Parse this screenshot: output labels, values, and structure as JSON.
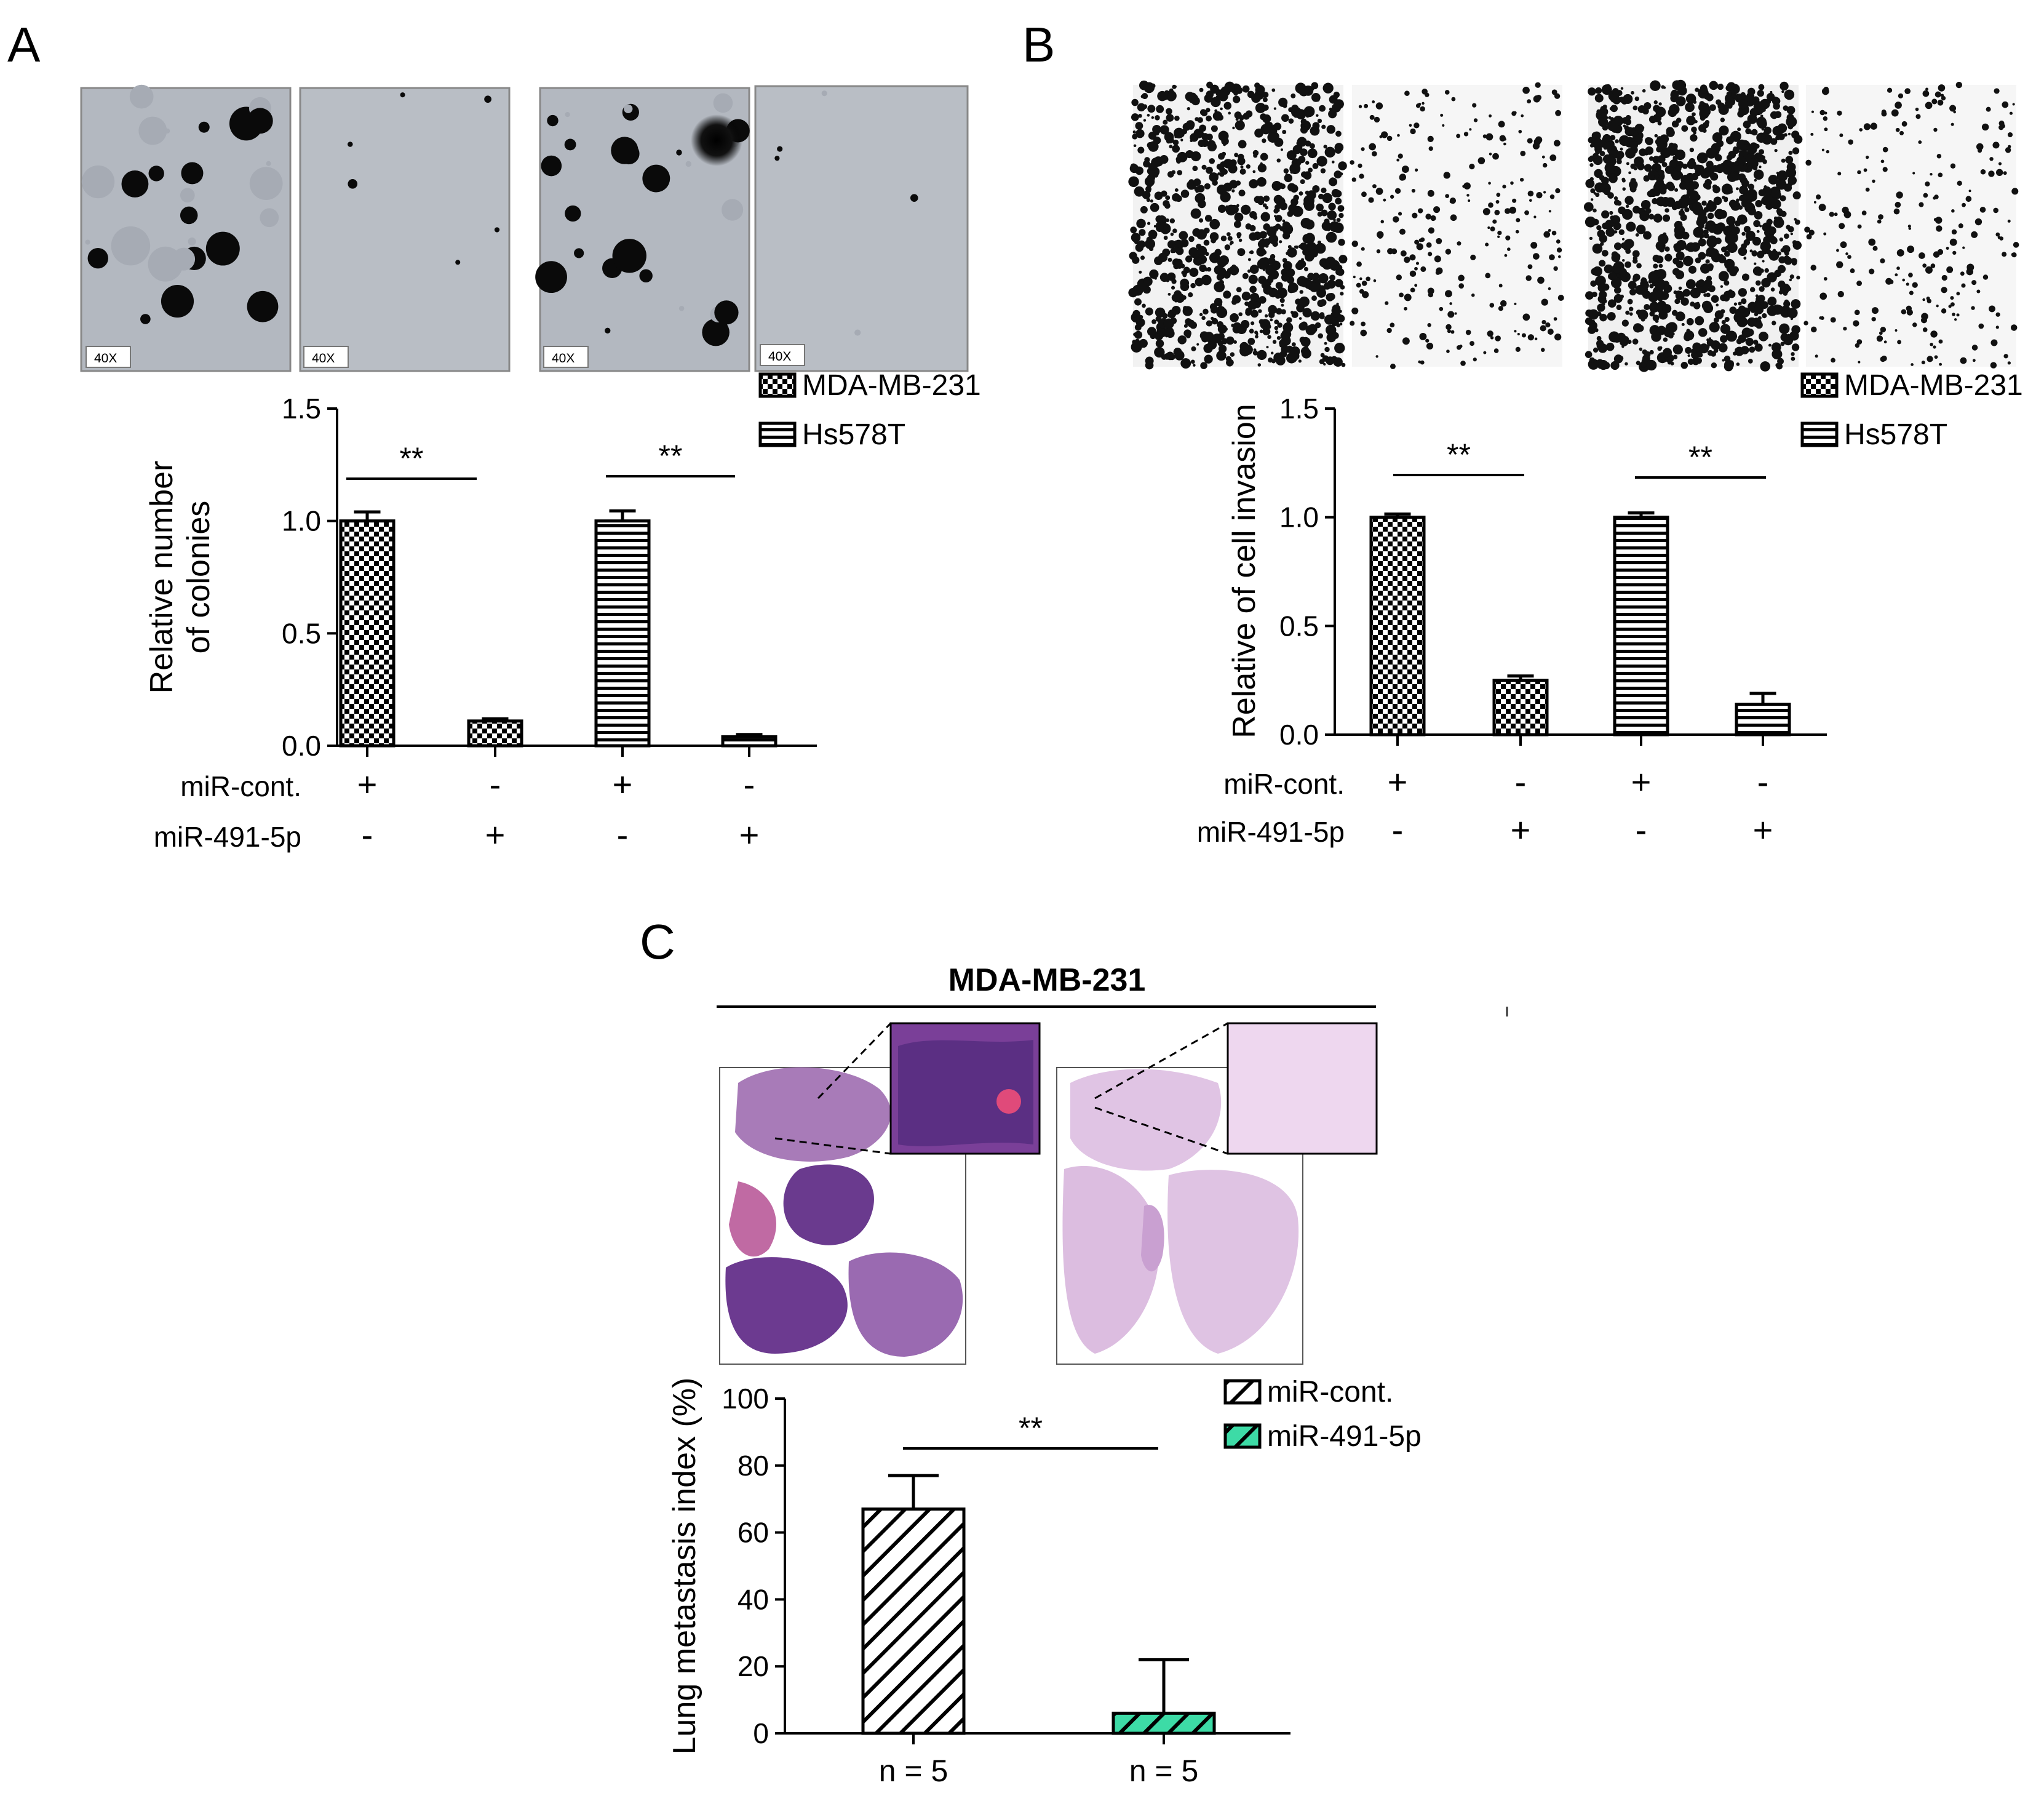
{
  "panels": {
    "a": {
      "letter": "A",
      "micrograph_scale_labels": [
        "40X",
        "40X",
        "40X",
        "40X"
      ]
    },
    "b": {
      "letter": "B"
    },
    "c": {
      "letter": "C",
      "header": "MDA-MB-231"
    }
  },
  "row_labels": {
    "cont": "miR-cont.",
    "mir": "miR-491-5p"
  },
  "chart_data": [
    {
      "id": "A",
      "type": "bar",
      "ylabel": [
        "Relative number",
        "of colonies"
      ],
      "ylim": [
        0,
        1.5
      ],
      "yticks": [
        "0.0",
        "0.5",
        "1.0",
        "1.5"
      ],
      "categories": [
        "MDA-MB-231 miR-cont.",
        "MDA-MB-231 miR-491-5p",
        "Hs578T miR-cont.",
        "Hs578T miR-491-5p"
      ],
      "values": [
        1.0,
        0.11,
        1.0,
        0.04
      ],
      "errors": [
        0.04,
        0.01,
        0.045,
        0.01
      ],
      "bar_series": [
        "MDA-MB-231",
        "MDA-MB-231",
        "Hs578T",
        "Hs578T"
      ],
      "legend": [
        "MDA-MB-231",
        "Hs578T"
      ],
      "legend_position": "top-right",
      "condition_row_cont": [
        "+",
        "-",
        "+",
        "-"
      ],
      "condition_row_mir": [
        "-",
        "+",
        "-",
        "+"
      ],
      "significance": [
        {
          "from": 0,
          "to": 1,
          "label": "**"
        },
        {
          "from": 2,
          "to": 3,
          "label": "**"
        }
      ],
      "colors": {
        "MDA-MB-231": "#000000",
        "Hs578T": "#000000"
      }
    },
    {
      "id": "B",
      "type": "bar",
      "ylabel": [
        "Relative of cell invasion"
      ],
      "ylim": [
        0,
        1.5
      ],
      "yticks": [
        "0.0",
        "0.5",
        "1.0",
        "1.5"
      ],
      "categories": [
        "MDA-MB-231 miR-cont.",
        "MDA-MB-231 miR-491-5p",
        "Hs578T miR-cont.",
        "Hs578T miR-491-5p"
      ],
      "values": [
        1.0,
        0.25,
        1.0,
        0.14
      ],
      "errors": [
        0.015,
        0.02,
        0.02,
        0.05
      ],
      "bar_series": [
        "MDA-MB-231",
        "MDA-MB-231",
        "Hs578T",
        "Hs578T"
      ],
      "legend": [
        "MDA-MB-231",
        "Hs578T"
      ],
      "legend_position": "top-right",
      "condition_row_cont": [
        "+",
        "-",
        "+",
        "-"
      ],
      "condition_row_mir": [
        "-",
        "+",
        "-",
        "+"
      ],
      "significance": [
        {
          "from": 0,
          "to": 1,
          "label": "**"
        },
        {
          "from": 2,
          "to": 3,
          "label": "**"
        }
      ],
      "colors": {
        "MDA-MB-231": "#000000",
        "Hs578T": "#000000"
      }
    },
    {
      "id": "C",
      "type": "bar",
      "ylabel": [
        "Lung metastasis index (%)"
      ],
      "ylim": [
        0,
        100
      ],
      "yticks": [
        "0",
        "20",
        "40",
        "60",
        "80",
        "100"
      ],
      "categories": [
        "n = 5",
        "n = 5"
      ],
      "values": [
        67,
        6
      ],
      "errors": [
        10,
        16
      ],
      "bar_series": [
        "miR-cont.",
        "miR-491-5p"
      ],
      "legend": [
        "miR-cont.",
        "miR-491-5p"
      ],
      "legend_position": "top-right",
      "significance": [
        {
          "from": 0,
          "to": 1,
          "label": "**"
        }
      ],
      "colors": {
        "miR-cont.": "#ffffff",
        "miR-491-5p": "#3ddba6"
      }
    }
  ]
}
